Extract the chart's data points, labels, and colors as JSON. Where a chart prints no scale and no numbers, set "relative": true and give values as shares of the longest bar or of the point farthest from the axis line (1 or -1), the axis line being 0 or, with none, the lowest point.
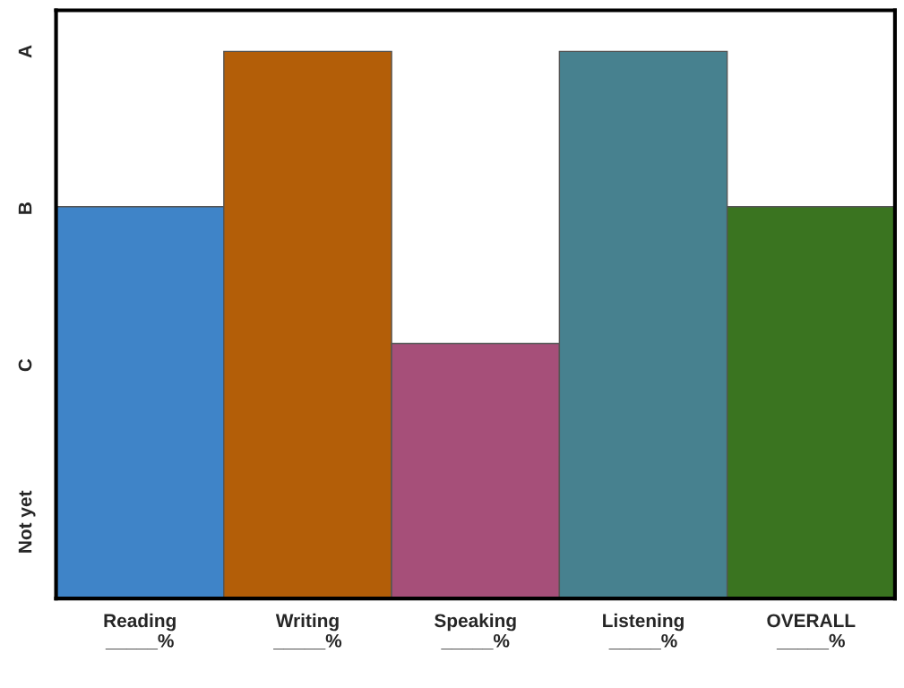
{
  "chart_data": {
    "type": "bar",
    "categories": [
      "Reading\n_____%",
      "Writing\n_____%",
      "Speaking\n_____%",
      "Listening\n_____%",
      "OVERALL\n_____%"
    ],
    "values": [
      0.716,
      1,
      0.466,
      1,
      0.716
    ],
    "colors": [
      "#3f84c8",
      "#b35e08",
      "#a64f79",
      "#47818f",
      "#3a7420"
    ],
    "relative": true,
    "annotations": [
      "A",
      "B",
      "C",
      "Not yet"
    ],
    "grid": false
  }
}
